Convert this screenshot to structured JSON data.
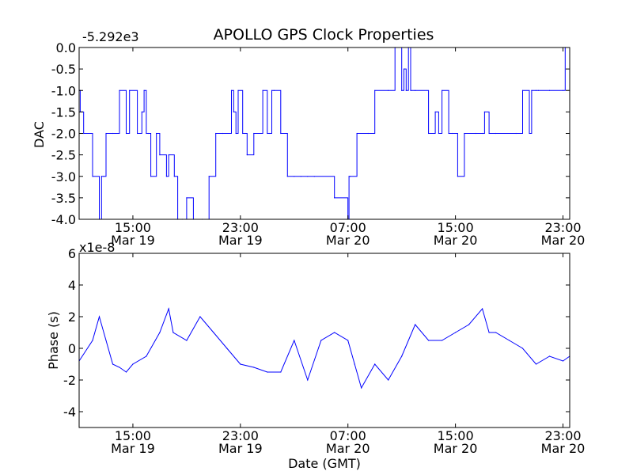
{
  "figure": {
    "title": "APOLLO GPS Clock Properties",
    "line_color": "#0000ff",
    "axis_color": "#000000",
    "background": "#ffffff"
  },
  "chart_data": [
    {
      "type": "line",
      "ylabel": "DAC",
      "offset_label": "-5.292e3",
      "xlim": [
        "Mar 19 11:00",
        "Mar 20 23:30"
      ],
      "ylim": [
        -4.0,
        0.0
      ],
      "yticks": [
        "0.0",
        "-0.5",
        "-1.0",
        "-1.5",
        "-2.0",
        "-2.5",
        "-3.0",
        "-3.5",
        "-4.0"
      ],
      "xticks": [
        {
          "time": "15:00",
          "date": "Mar 19"
        },
        {
          "time": "23:00",
          "date": "Mar 19"
        },
        {
          "time": "07:00",
          "date": "Mar 20"
        },
        {
          "time": "15:00",
          "date": "Mar 20"
        },
        {
          "time": "23:00",
          "date": "Mar 20"
        }
      ],
      "series": [
        {
          "x": [
            "Mar 19 11:00",
            "Mar 19 11:05",
            "Mar 19 11:20",
            "Mar 19 12:00",
            "Mar 19 12:30",
            "Mar 19 12:40",
            "Mar 19 12:50",
            "Mar 19 13:00",
            "Mar 19 13:30",
            "Mar 19 14:00",
            "Mar 19 14:30",
            "Mar 19 14:45",
            "Mar 19 15:20",
            "Mar 19 15:40",
            "Mar 19 15:50",
            "Mar 19 16:00",
            "Mar 19 16:10",
            "Mar 19 16:20",
            "Mar 19 16:45",
            "Mar 19 17:00",
            "Mar 19 17:30",
            "Mar 19 17:40",
            "Mar 19 18:05",
            "Mar 19 18:20",
            "Mar 19 18:40",
            "Mar 19 19:00",
            "Mar 19 19:30",
            "Mar 19 20:10",
            "Mar 19 20:40",
            "Mar 19 21:10",
            "Mar 19 21:40",
            "Mar 19 22:20",
            "Mar 19 22:30",
            "Mar 19 22:40",
            "Mar 19 22:50",
            "Mar 19 23:10",
            "Mar 19 23:20",
            "Mar 19 23:30",
            "Mar 20 00:00",
            "Mar 20 00:40",
            "Mar 20 01:00",
            "Mar 20 01:10",
            "Mar 20 01:20",
            "Mar 20 01:30",
            "Mar 20 02:00",
            "Mar 20 02:30",
            "Mar 20 03:00",
            "Mar 20 03:30",
            "Mar 20 04:00",
            "Mar 20 04:30",
            "Mar 20 06:00",
            "Mar 20 07:00",
            "Mar 20 07:05",
            "Mar 20 07:10",
            "Mar 20 07:40",
            "Mar 20 08:30",
            "Mar 20 09:00",
            "Mar 20 10:00",
            "Mar 20 10:30",
            "Mar 20 11:00",
            "Mar 20 11:10",
            "Mar 20 11:20",
            "Mar 20 11:30",
            "Mar 20 11:40",
            "Mar 20 12:00",
            "Mar 20 13:00",
            "Mar 20 13:30",
            "Mar 20 13:45",
            "Mar 20 14:00",
            "Mar 20 14:30",
            "Mar 20 14:45",
            "Mar 20 15:10",
            "Mar 20 15:40",
            "Mar 20 16:30",
            "Mar 20 17:00",
            "Mar 20 17:10",
            "Mar 20 17:30",
            "Mar 20 18:00",
            "Mar 20 19:30",
            "Mar 20 20:00",
            "Mar 20 20:30",
            "Mar 20 20:40",
            "Mar 20 21:00",
            "Mar 20 21:10",
            "Mar 20 22:00",
            "Mar 20 23:00",
            "Mar 20 23:10",
            "Mar 20 23:30"
          ],
          "y": [
            -1.0,
            -1.5,
            -2.0,
            -3.0,
            -4.0,
            -3.0,
            -3.0,
            -2.0,
            -2.0,
            -1.0,
            -2.0,
            -1.0,
            -2.0,
            -1.5,
            -1.0,
            -2.0,
            -2.0,
            -3.0,
            -2.0,
            -2.5,
            -3.0,
            -2.5,
            -3.0,
            -4.0,
            -4.0,
            -3.5,
            -4.0,
            -4.0,
            -3.0,
            -2.0,
            -2.0,
            -1.0,
            -1.5,
            -2.0,
            -1.0,
            -2.0,
            -2.0,
            -2.5,
            -2.0,
            -1.0,
            -2.0,
            -2.0,
            -1.0,
            -1.0,
            -2.0,
            -3.0,
            -3.0,
            -3.0,
            -3.0,
            -3.0,
            -3.5,
            -4.0,
            -3.0,
            -3.0,
            -2.0,
            -2.0,
            -1.0,
            -1.0,
            -0.0,
            -1.0,
            -0.5,
            -1.0,
            -0.0,
            -1.0,
            -1.0,
            -2.0,
            -1.5,
            -2.0,
            -1.0,
            -2.0,
            -2.0,
            -3.0,
            -2.0,
            -2.0,
            -2.0,
            -1.5,
            -2.0,
            -2.0,
            -2.0,
            -1.0,
            -2.0,
            -1.0,
            -1.0,
            -1.0,
            -1.0,
            -1.0,
            -0.0,
            -1.0
          ]
        }
      ]
    },
    {
      "type": "line",
      "ylabel": "Phase (s)",
      "xlabel": "Date (GMT)",
      "offset_label": "x1e-8",
      "xlim": [
        "Mar 19 11:00",
        "Mar 20 23:30"
      ],
      "ylim": [
        -5,
        6
      ],
      "yticks": [
        "6",
        "4",
        "2",
        "0",
        "-2",
        "-4"
      ],
      "xticks": [
        {
          "time": "15:00",
          "date": "Mar 19"
        },
        {
          "time": "23:00",
          "date": "Mar 19"
        },
        {
          "time": "07:00",
          "date": "Mar 20"
        },
        {
          "time": "15:00",
          "date": "Mar 20"
        },
        {
          "time": "23:00",
          "date": "Mar 20"
        }
      ],
      "series": [
        {
          "x": [
            "Mar 19 11:00",
            "Mar 19 12:00",
            "Mar 19 12:30",
            "Mar 19 13:00",
            "Mar 19 13:30",
            "Mar 19 14:00",
            "Mar 19 14:30",
            "Mar 19 15:00",
            "Mar 19 16:00",
            "Mar 19 17:00",
            "Mar 19 17:40",
            "Mar 19 18:00",
            "Mar 19 19:00",
            "Mar 19 20:00",
            "Mar 19 21:00",
            "Mar 19 22:00",
            "Mar 19 23:00",
            "Mar 20 00:00",
            "Mar 20 01:00",
            "Mar 20 02:00",
            "Mar 20 03:00",
            "Mar 20 04:00",
            "Mar 20 05:00",
            "Mar 20 06:00",
            "Mar 20 07:00",
            "Mar 20 07:30",
            "Mar 20 08:00",
            "Mar 20 09:00",
            "Mar 20 10:00",
            "Mar 20 11:00",
            "Mar 20 12:00",
            "Mar 20 13:00",
            "Mar 20 14:00",
            "Mar 20 15:00",
            "Mar 20 16:00",
            "Mar 20 17:00",
            "Mar 20 17:30",
            "Mar 20 18:00",
            "Mar 20 19:00",
            "Mar 20 20:00",
            "Mar 20 21:00",
            "Mar 20 22:00",
            "Mar 20 23:00",
            "Mar 20 23:30"
          ],
          "y": [
            -0.8,
            0.5,
            2.0,
            0.5,
            -1.0,
            -1.2,
            -1.5,
            -1.0,
            -0.5,
            1.0,
            2.5,
            1.0,
            0.5,
            2.0,
            1.0,
            0.0,
            -1.0,
            -1.2,
            -1.5,
            -1.5,
            0.5,
            -2.0,
            0.5,
            1.0,
            0.5,
            -1.0,
            -2.5,
            -1.0,
            -2.0,
            -0.5,
            1.5,
            0.5,
            0.5,
            1.0,
            1.5,
            2.5,
            1.0,
            1.0,
            0.5,
            0.0,
            -1.0,
            -0.5,
            -0.8,
            -0.5
          ]
        }
      ]
    }
  ]
}
